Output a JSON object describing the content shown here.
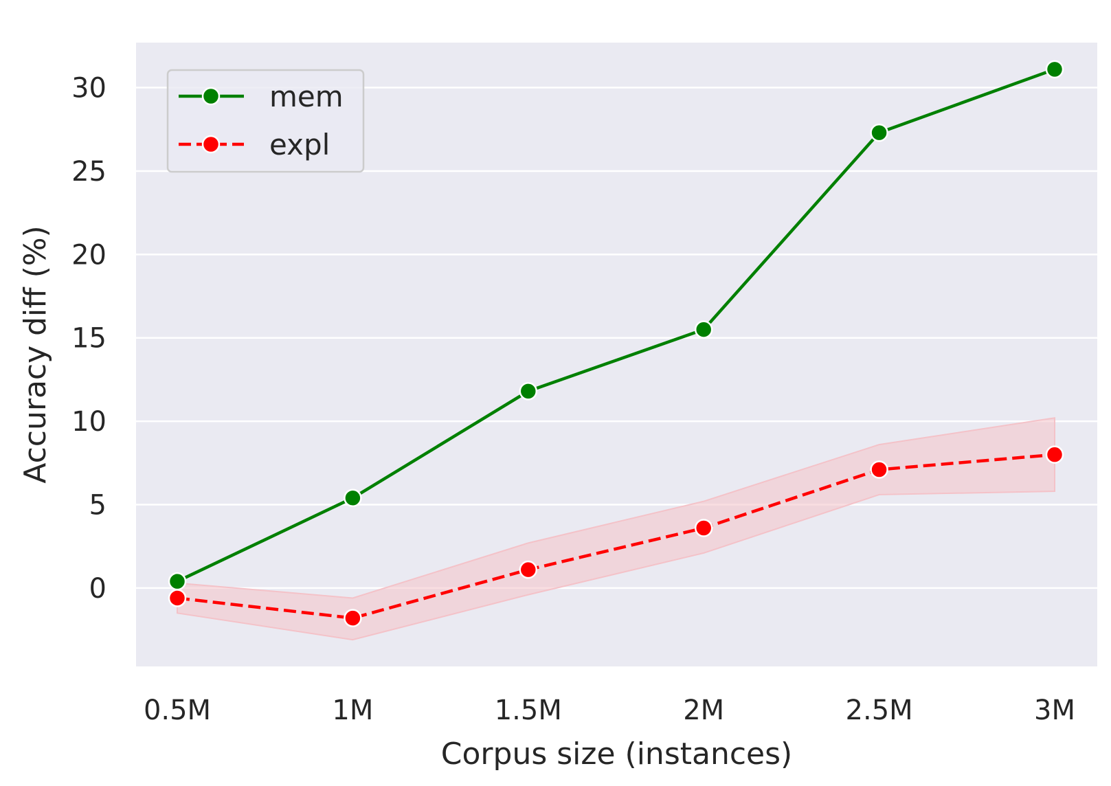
{
  "chart_data": {
    "type": "line",
    "title": "",
    "xlabel": "Corpus size (instances)",
    "ylabel": "Accuracy diff (%)",
    "categories": [
      "0.5M",
      "1M",
      "1.5M",
      "2M",
      "2.5M",
      "3M"
    ],
    "yticks": [
      0,
      5,
      10,
      15,
      20,
      25,
      30
    ],
    "ylim": [
      -4.7,
      32.7
    ],
    "grid": true,
    "legend_position": "top-left",
    "background": "#eaeaf2",
    "series": [
      {
        "name": "mem",
        "values": [
          0.4,
          5.4,
          11.8,
          15.5,
          27.3,
          31.1
        ],
        "color": "#008000",
        "line_style": "solid",
        "marker": "circle"
      },
      {
        "name": "expl",
        "values": [
          -0.6,
          -1.8,
          1.1,
          3.6,
          7.1,
          8.0
        ],
        "lower": [
          -1.5,
          -3.1,
          -0.4,
          2.1,
          5.6,
          5.8
        ],
        "upper": [
          0.3,
          -0.6,
          2.7,
          5.2,
          8.6,
          10.2
        ],
        "color": "#ff0000",
        "band_color": "#f4c2c8",
        "line_style": "dashed",
        "marker": "circle"
      }
    ]
  }
}
